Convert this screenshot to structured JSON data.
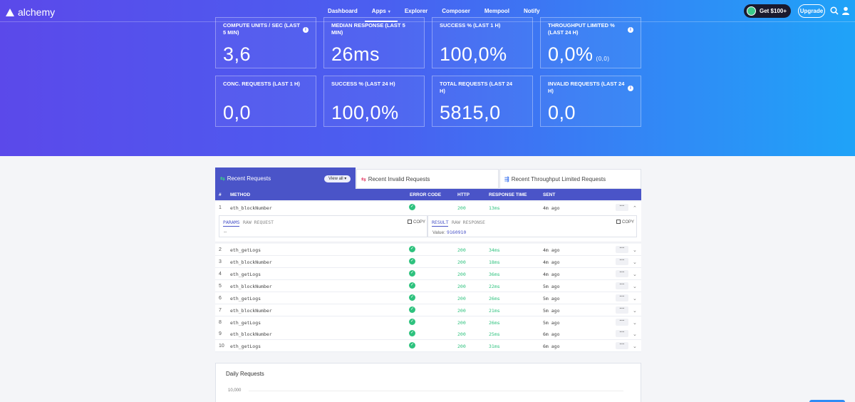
{
  "nav": {
    "logo": "alchemy",
    "links": [
      "Dashboard",
      "Apps",
      "Explorer",
      "Composer",
      "Mempool",
      "Notify"
    ],
    "active": "Apps",
    "get_label": "Get $100+",
    "upgrade_label": "Upgrade"
  },
  "stats": [
    {
      "label": "COMPUTE UNITS / SEC (LAST 5 MIN)",
      "value": "3,6",
      "info": true
    },
    {
      "label": "MEDIAN RESPONSE (LAST 5 MIN)",
      "value": "26ms",
      "info": false
    },
    {
      "label": "SUCCESS % (LAST 1 H)",
      "value": "100,0%",
      "info": false
    },
    {
      "label": "THROUGHPUT LIMITED % (LAST 24 H)",
      "value": "0,0%",
      "sub": "(0,0)",
      "info": true
    },
    {
      "label": "CONC. REQUESTS (LAST 1 H)",
      "value": "0,0",
      "info": false
    },
    {
      "label": "SUCCESS % (LAST 24 H)",
      "value": "100,0%",
      "info": false
    },
    {
      "label": "TOTAL REQUESTS (LAST 24 H)",
      "value": "5815,0",
      "info": false
    },
    {
      "label": "INVALID REQUESTS (LAST 24 H)",
      "value": "0,0",
      "info": true
    }
  ],
  "tabs": {
    "recent": "Recent Requests",
    "view_all": "View all",
    "invalid": "Recent Invalid Requests",
    "throughput": "Recent Throughput Limited Requests"
  },
  "table": {
    "headers": {
      "num": "#",
      "method": "METHOD",
      "error": "ERROR CODE",
      "http": "HTTP",
      "rt": "RESPONSE TIME",
      "sent": "SENT"
    },
    "rows": [
      {
        "n": "1",
        "method": "eth_blockNumber",
        "http": "200",
        "rt": "13ms",
        "sent": "4m ago"
      },
      {
        "n": "2",
        "method": "eth_getLogs",
        "http": "200",
        "rt": "34ms",
        "sent": "4m ago"
      },
      {
        "n": "3",
        "method": "eth_blockNumber",
        "http": "200",
        "rt": "18ms",
        "sent": "4m ago"
      },
      {
        "n": "4",
        "method": "eth_getLogs",
        "http": "200",
        "rt": "36ms",
        "sent": "4m ago"
      },
      {
        "n": "5",
        "method": "eth_blockNumber",
        "http": "200",
        "rt": "22ms",
        "sent": "5m ago"
      },
      {
        "n": "6",
        "method": "eth_getLogs",
        "http": "200",
        "rt": "26ms",
        "sent": "5m ago"
      },
      {
        "n": "7",
        "method": "eth_blockNumber",
        "http": "200",
        "rt": "21ms",
        "sent": "5m ago"
      },
      {
        "n": "8",
        "method": "eth_getLogs",
        "http": "200",
        "rt": "26ms",
        "sent": "5m ago"
      },
      {
        "n": "9",
        "method": "eth_blockNumber",
        "http": "200",
        "rt": "25ms",
        "sent": "6m ago"
      },
      {
        "n": "10",
        "method": "eth_getLogs",
        "http": "200",
        "rt": "31ms",
        "sent": "6m ago"
      }
    ],
    "more": "···"
  },
  "detail": {
    "params": "PARAMS",
    "raw_request": "RAW REQUEST",
    "copy": "COPY",
    "params_value": "--",
    "result": "RESULT",
    "raw_response": "RAW RESPONSE",
    "value_label": "Value:",
    "value": "9160910"
  },
  "daily": {
    "title": "Daily Requests",
    "ytick": "10,000"
  },
  "colors": {
    "primary": "#4a54c8",
    "success": "#2ec27e"
  }
}
